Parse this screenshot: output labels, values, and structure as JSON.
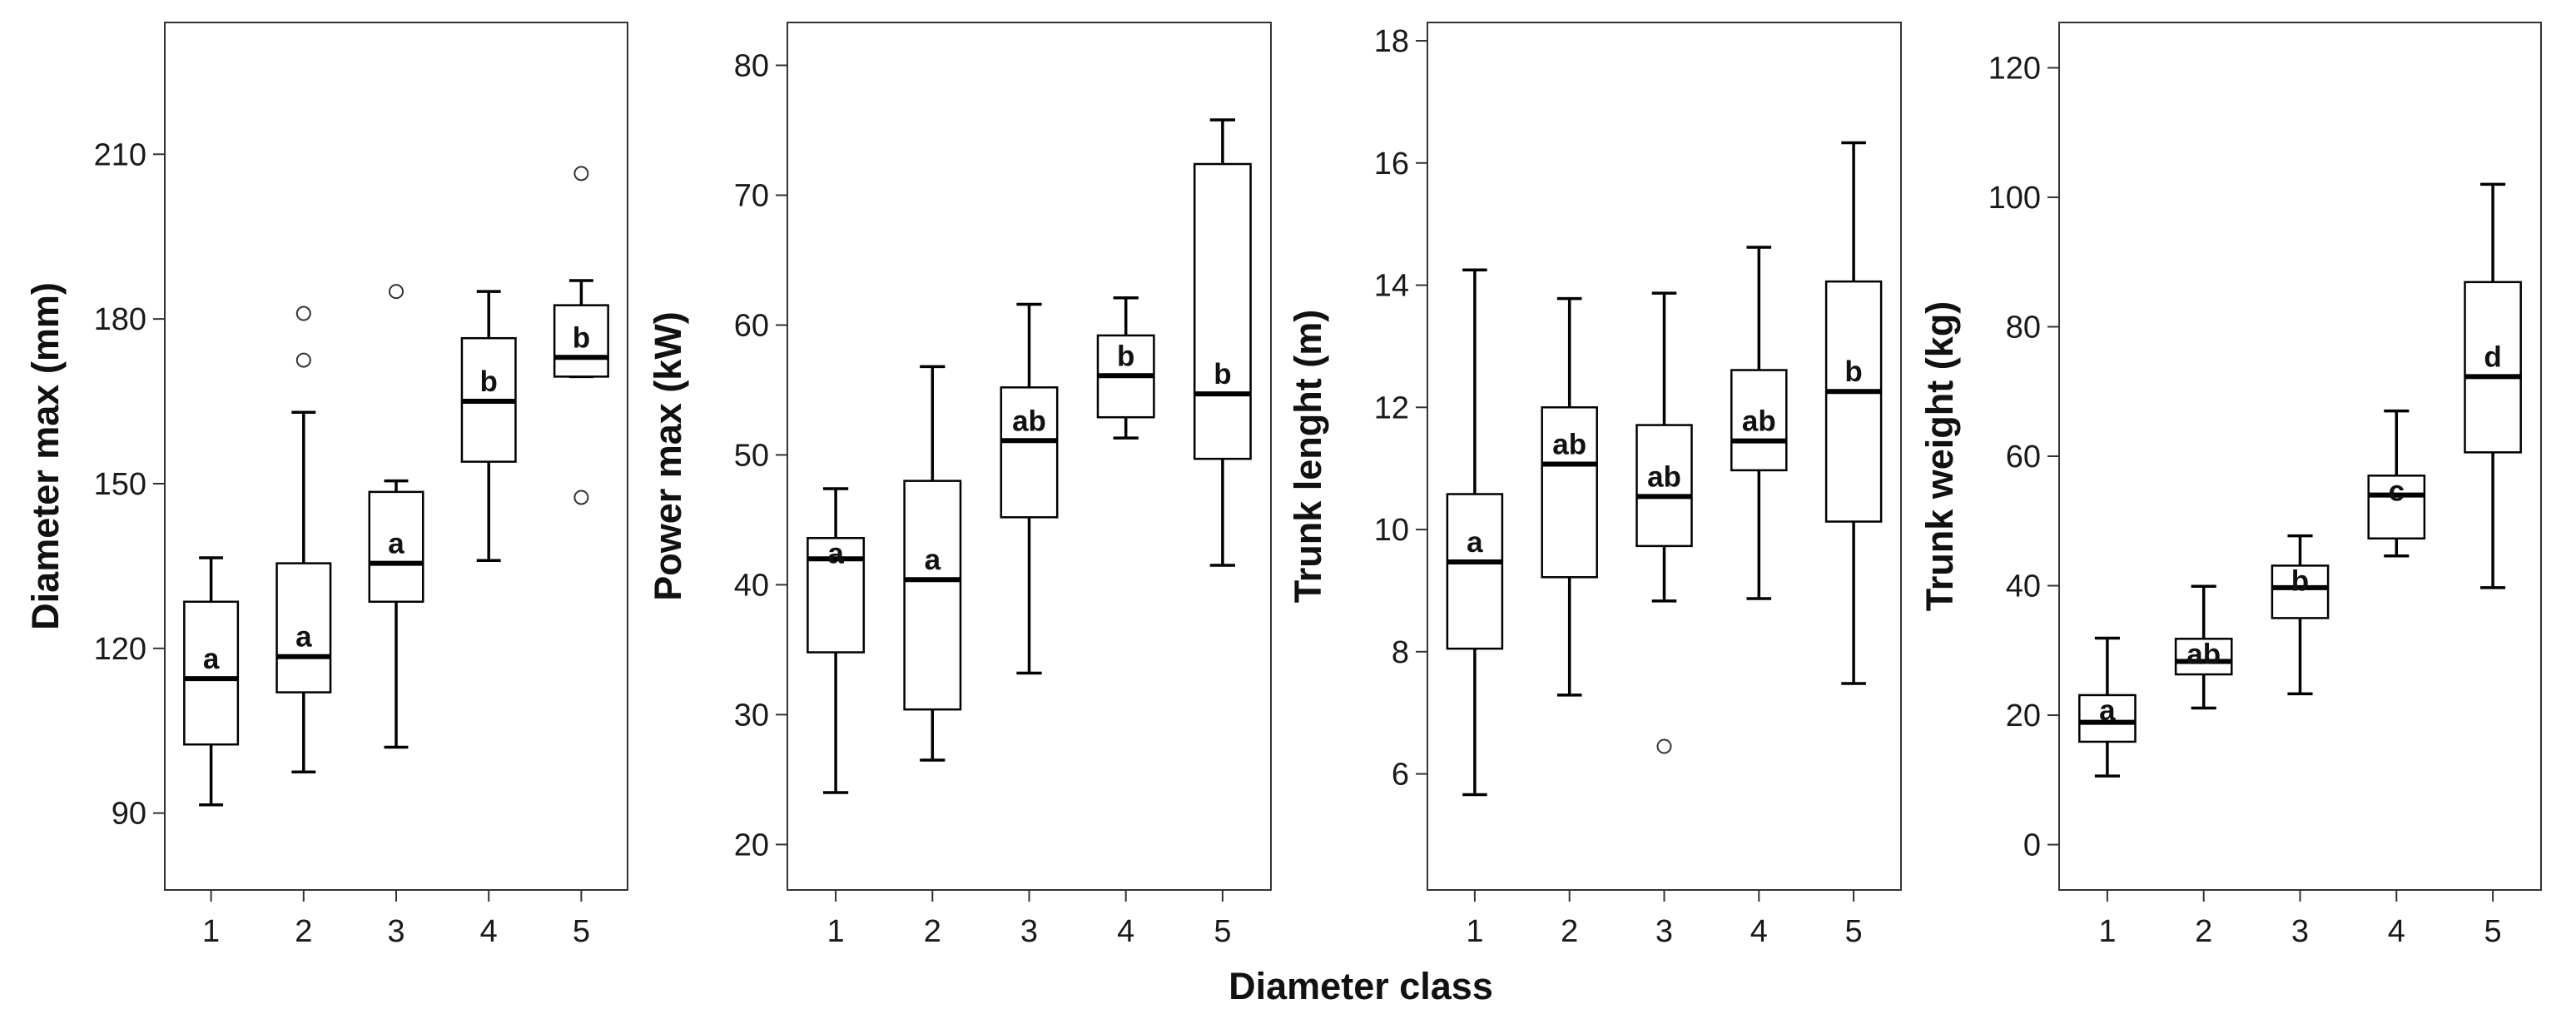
{
  "shared_xlabel": "Diameter class",
  "chart_data": [
    {
      "type": "box",
      "ylabel": "Diameter max (mm)",
      "xlabel": "",
      "ylim": [
        76,
        234
      ],
      "yticks": [
        90,
        120,
        150,
        180,
        210
      ],
      "categories": [
        "1",
        "2",
        "3",
        "4",
        "5"
      ],
      "boxes": [
        {
          "category": "1",
          "min": 91.5,
          "q1": 102.5,
          "median": 114.5,
          "q3": 128.5,
          "max": 136.5,
          "outliers": [],
          "letter": "a"
        },
        {
          "category": "2",
          "min": 97.5,
          "q1": 112,
          "median": 118.5,
          "q3": 135.5,
          "max": 163,
          "outliers": [
            172.5,
            181
          ],
          "letter": "a"
        },
        {
          "category": "3",
          "min": 102,
          "q1": 128.5,
          "median": 135.5,
          "q3": 148.5,
          "max": 150.5,
          "outliers": [
            185
          ],
          "letter": "a"
        },
        {
          "category": "4",
          "min": 136,
          "q1": 154,
          "median": 165,
          "q3": 176.5,
          "max": 185,
          "outliers": [],
          "letter": "b"
        },
        {
          "category": "5",
          "min": 169.5,
          "q1": 169.5,
          "median": 173,
          "q3": 182.5,
          "max": 187,
          "outliers": [
            147.5,
            206.5
          ],
          "letter": "b"
        }
      ]
    },
    {
      "type": "box",
      "ylabel": "Power max (kW)",
      "xlabel": "",
      "ylim": [
        16.5,
        83.3
      ],
      "yticks": [
        20,
        30,
        40,
        50,
        60,
        70,
        80
      ],
      "categories": [
        "1",
        "2",
        "3",
        "4",
        "5"
      ],
      "boxes": [
        {
          "category": "1",
          "min": 24,
          "q1": 34.8,
          "median": 42,
          "q3": 43.6,
          "max": 47.4,
          "outliers": [],
          "letter": "a"
        },
        {
          "category": "2",
          "min": 26.5,
          "q1": 30.4,
          "median": 40.4,
          "q3": 48,
          "max": 56.8,
          "outliers": [],
          "letter": "a"
        },
        {
          "category": "3",
          "min": 33.2,
          "q1": 45.2,
          "median": 51.1,
          "q3": 55.2,
          "max": 61.6,
          "outliers": [],
          "letter": "ab"
        },
        {
          "category": "4",
          "min": 51.3,
          "q1": 52.9,
          "median": 56.1,
          "q3": 59.2,
          "max": 62.1,
          "outliers": [],
          "letter": "b"
        },
        {
          "category": "5",
          "min": 41.5,
          "q1": 49.7,
          "median": 54.7,
          "q3": 72.4,
          "max": 75.8,
          "outliers": [],
          "letter": "b"
        }
      ]
    },
    {
      "type": "box",
      "ylabel": "Trunk lenght (m)",
      "xlabel": "",
      "ylim": [
        4.1,
        18.3
      ],
      "yticks": [
        6,
        8,
        10,
        12,
        14,
        16,
        18
      ],
      "categories": [
        "1",
        "2",
        "3",
        "4",
        "5"
      ],
      "boxes": [
        {
          "category": "1",
          "min": 5.66,
          "q1": 8.05,
          "median": 9.47,
          "q3": 10.58,
          "max": 14.25,
          "outliers": [],
          "letter": "a"
        },
        {
          "category": "2",
          "min": 7.29,
          "q1": 9.22,
          "median": 11.07,
          "q3": 12,
          "max": 13.78,
          "outliers": [],
          "letter": "ab"
        },
        {
          "category": "3",
          "min": 8.83,
          "q1": 9.73,
          "median": 10.54,
          "q3": 11.71,
          "max": 13.87,
          "outliers": [
            6.45
          ],
          "letter": "ab"
        },
        {
          "category": "4",
          "min": 8.87,
          "q1": 10.97,
          "median": 11.45,
          "q3": 12.61,
          "max": 14.62,
          "outliers": [],
          "letter": "ab"
        },
        {
          "category": "5",
          "min": 7.48,
          "q1": 10.13,
          "median": 12.26,
          "q3": 14.06,
          "max": 16.33,
          "outliers": [],
          "letter": "b"
        }
      ]
    },
    {
      "type": "box",
      "ylabel": "Trunk weight (kg)",
      "xlabel": "",
      "ylim": [
        -7,
        127
      ],
      "yticks": [
        0,
        20,
        40,
        60,
        80,
        100,
        120
      ],
      "categories": [
        "1",
        "2",
        "3",
        "4",
        "5"
      ],
      "boxes": [
        {
          "category": "1",
          "min": 10.6,
          "q1": 15.9,
          "median": 18.9,
          "q3": 23.1,
          "max": 31.9,
          "outliers": [],
          "letter": "a"
        },
        {
          "category": "2",
          "min": 21.1,
          "q1": 26.3,
          "median": 28.3,
          "q3": 31.8,
          "max": 39.9,
          "outliers": [],
          "letter": "ab"
        },
        {
          "category": "3",
          "min": 23.3,
          "q1": 35,
          "median": 39.7,
          "q3": 43.1,
          "max": 47.7,
          "outliers": [],
          "letter": "b"
        },
        {
          "category": "4",
          "min": 44.6,
          "q1": 47.3,
          "median": 54,
          "q3": 57,
          "max": 67,
          "outliers": [],
          "letter": "c"
        },
        {
          "category": "5",
          "min": 39.7,
          "q1": 60.6,
          "median": 72.3,
          "q3": 86.9,
          "max": 102,
          "outliers": [],
          "letter": "d"
        }
      ]
    }
  ]
}
